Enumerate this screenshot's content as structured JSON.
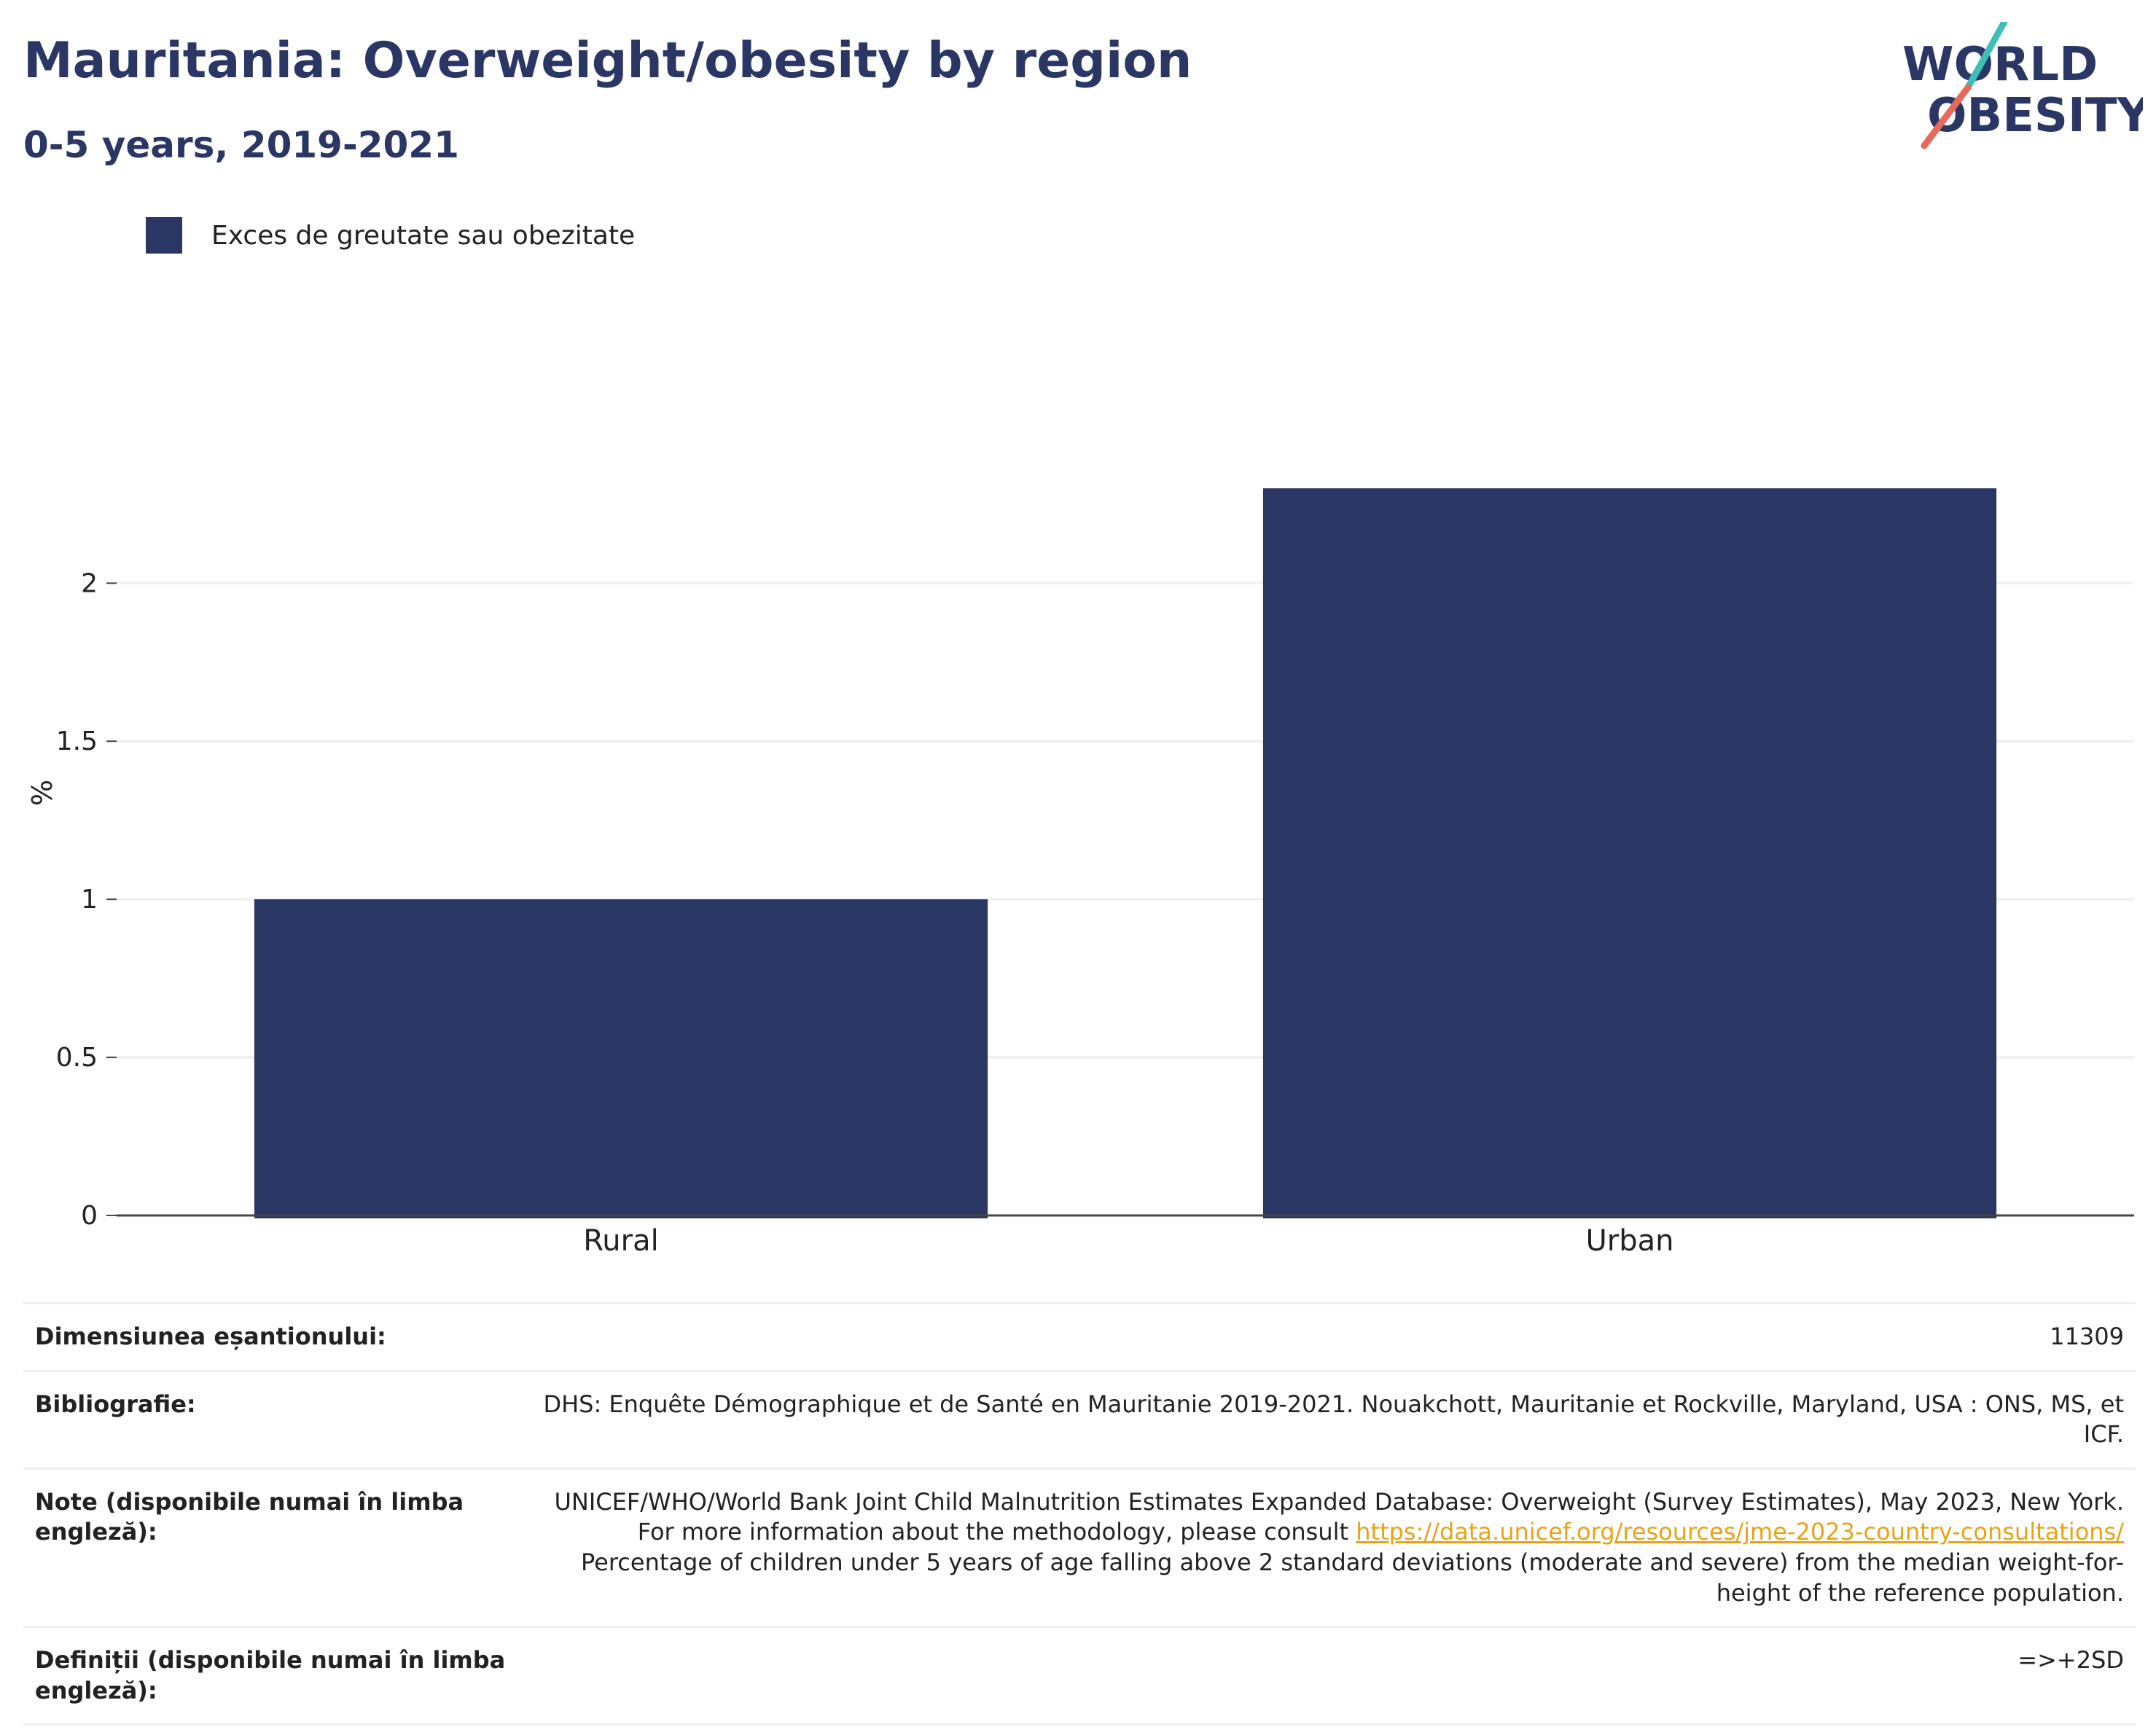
{
  "header": {
    "title": "Mauritania: Overweight/obesity by region",
    "subtitle": "0-5 years, 2019-2021"
  },
  "logo": {
    "line1": "WORLD",
    "line2": "OBESITY",
    "colors": {
      "text": "#2a3664",
      "slash_top": "#3dbfb8",
      "slash_bottom": "#e8685a"
    }
  },
  "colors": {
    "bar": "#2a3664",
    "grid": "#eeeeee",
    "axis": "#444444",
    "link": "#e8a317"
  },
  "chart_data": {
    "type": "bar",
    "categories": [
      "Rural",
      "Urban"
    ],
    "series": [
      {
        "name": "Exces de greutate sau obezitate",
        "values": [
          1.0,
          2.3
        ]
      }
    ],
    "ylabel": "%",
    "xlabel": "",
    "ylim": [
      0,
      2.6
    ],
    "yticks": [
      0,
      0.5,
      1,
      1.5,
      2
    ],
    "grid": true,
    "legend": "top-left"
  },
  "info": {
    "sample_label": "Dimensiunea eșantionului:",
    "sample_value": "11309",
    "biblio_label": "Bibliografie:",
    "biblio_value": "DHS: Enquête Démographique et de Santé en Mauritanie 2019-2021. Nouakchott, Mauritanie et Rockville, Maryland, USA : ONS, MS, et ICF.",
    "notes_label": "Note (disponibile numai în limba engleză):",
    "notes_before": "UNICEF/WHO/World Bank Joint Child Malnutrition Estimates Expanded Database: Overweight (Survey Estimates), May 2023, New York. For more information about the methodology, please consult ",
    "notes_link": "https://data.unicef.org/resources/jme-2023-country-consultations/",
    "notes_after": " Percentage of children under 5 years of age falling above 2 standard deviations (moderate and severe) from the median weight-for-height of the reference population.",
    "def_label": "Definiții (disponibile numai în limba engleză):",
    "def_value": "=>+2SD"
  }
}
